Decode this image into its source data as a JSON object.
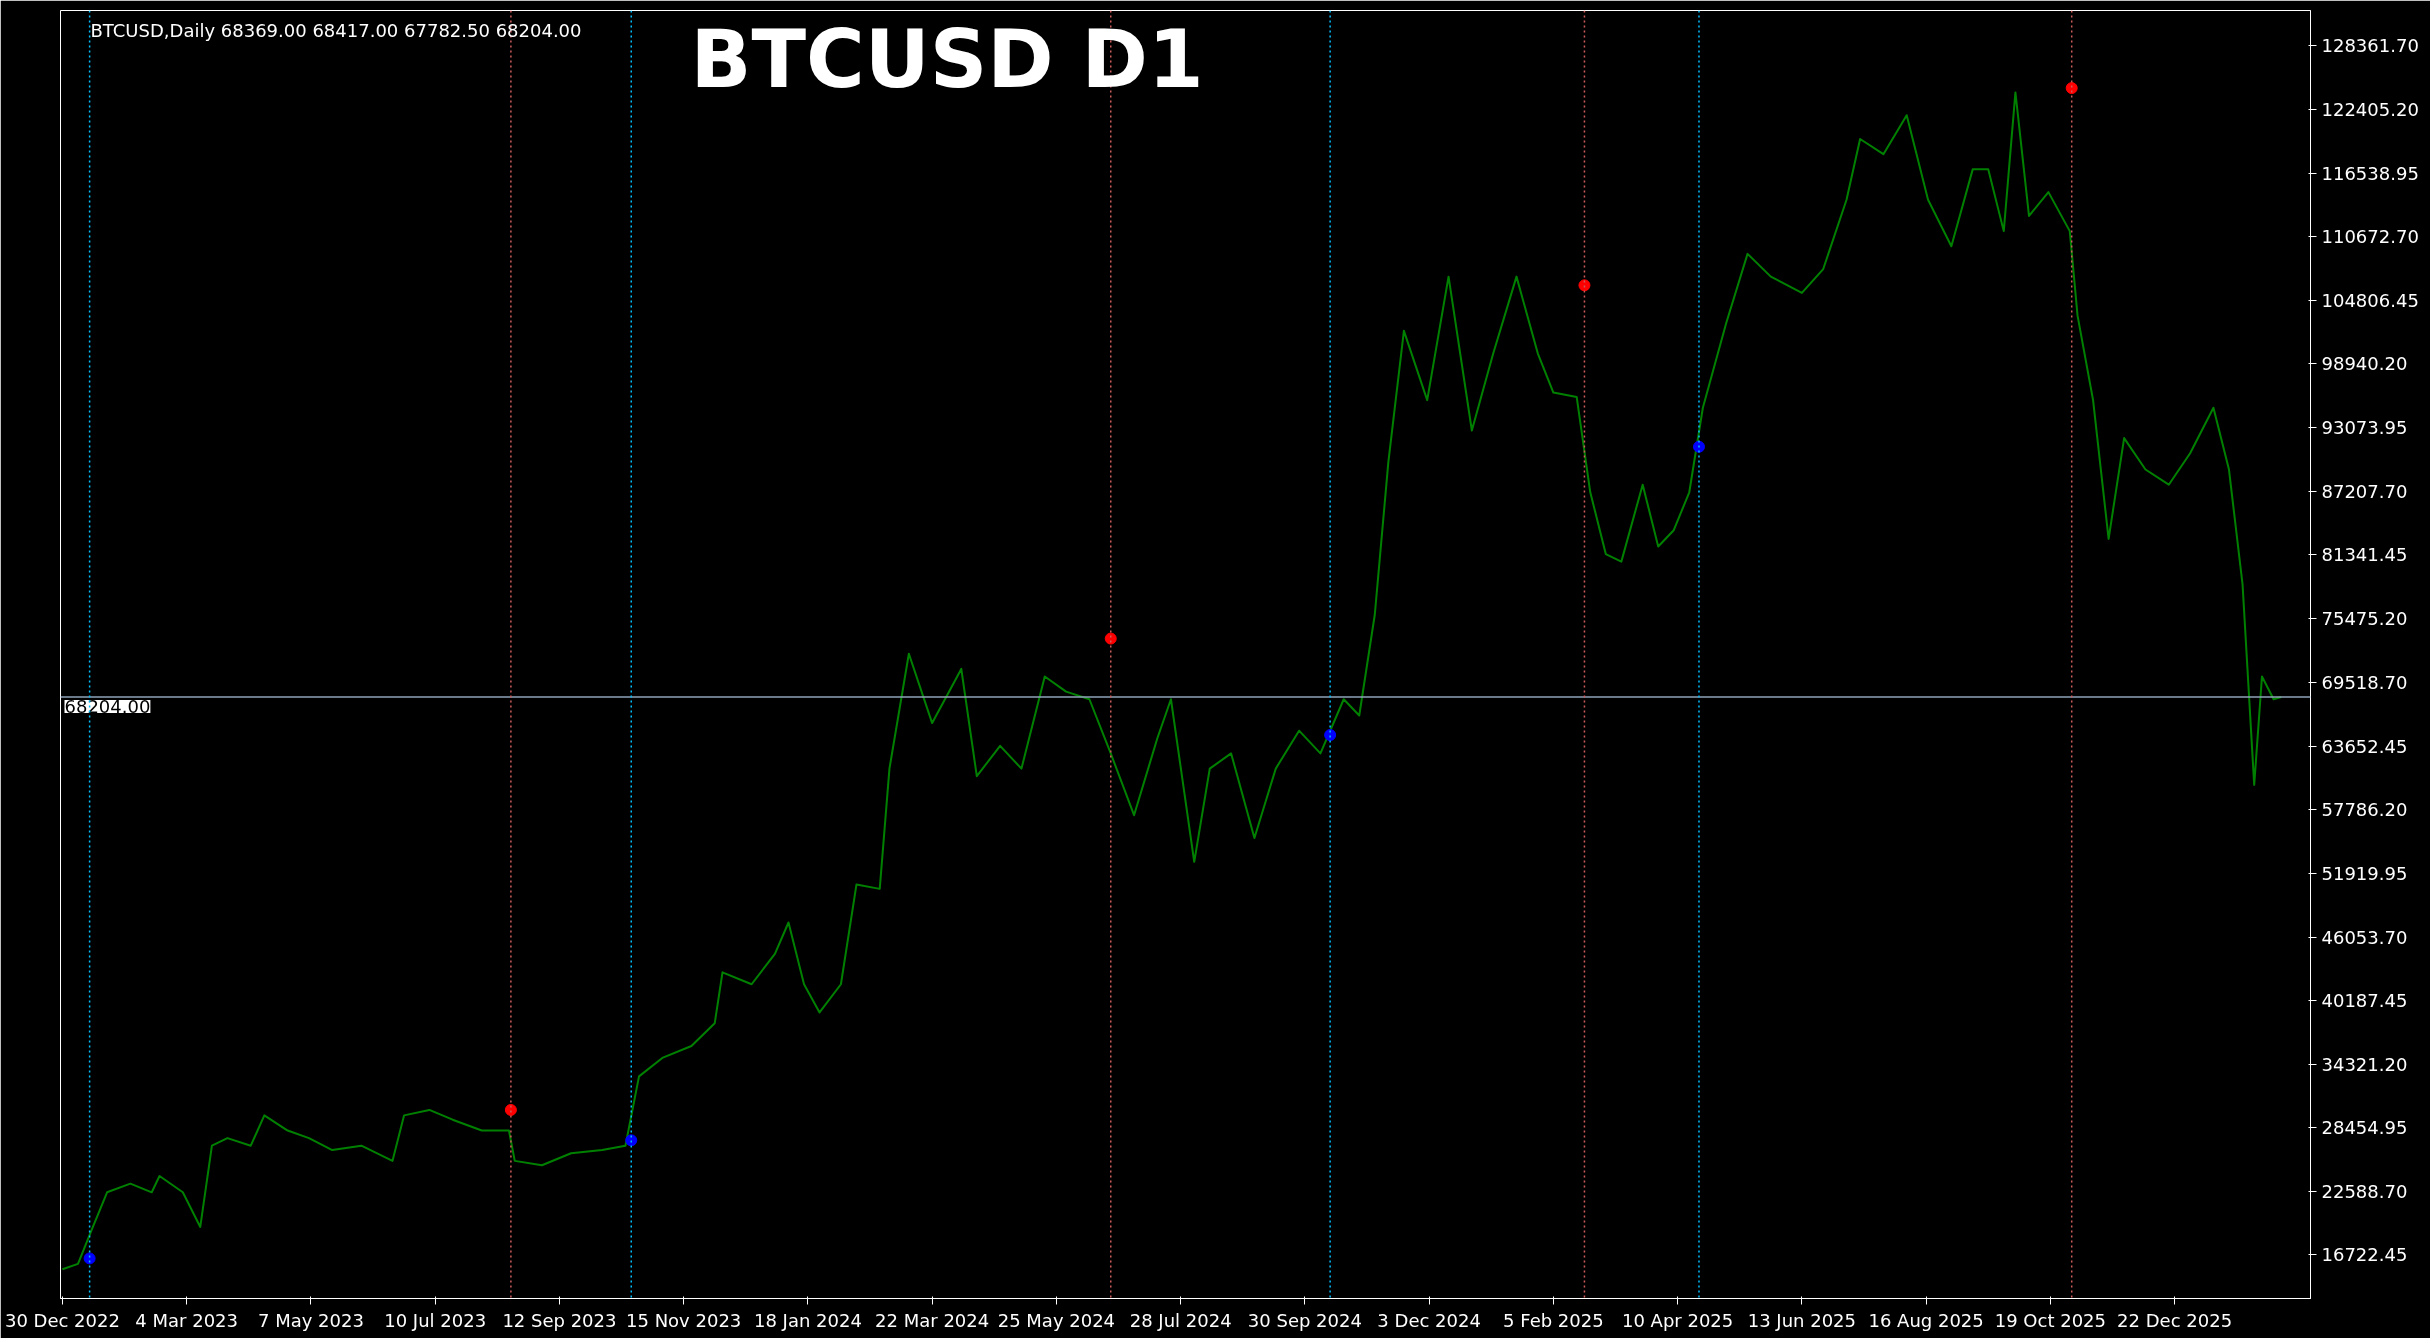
{
  "chart_data": {
    "type": "line",
    "title": "BTCUSD D1",
    "annotations": [
      "BTCUSD,Daily  68369.00 68417.00 67782.50 68204.00"
    ],
    "xlim": [
      "2022-12-29",
      "2026-03-02"
    ],
    "xticks": [
      {
        "value": "2022-12-30",
        "label": "30 Dec 2022"
      },
      {
        "value": "2023-03-04",
        "label": "4 Mar 2023"
      },
      {
        "value": "2023-05-07",
        "label": "7 May 2023"
      },
      {
        "value": "2023-07-10",
        "label": "10 Jul 2023"
      },
      {
        "value": "2023-09-12",
        "label": "12 Sep 2023"
      },
      {
        "value": "2023-11-15",
        "label": "15 Nov 2023"
      },
      {
        "value": "2024-01-18",
        "label": "18 Jan 2024"
      },
      {
        "value": "2024-03-22",
        "label": "22 Mar 2024"
      },
      {
        "value": "2024-05-25",
        "label": "25 May 2024"
      },
      {
        "value": "2024-07-28",
        "label": "28 Jul 2024"
      },
      {
        "value": "2024-09-30",
        "label": "30 Sep 2024"
      },
      {
        "value": "2024-12-03",
        "label": "3 Dec 2024"
      },
      {
        "value": "2025-02-05",
        "label": "5 Feb 2025"
      },
      {
        "value": "2025-04-10",
        "label": "10 Apr 2025"
      },
      {
        "value": "2025-06-13",
        "label": "13 Jun 2025"
      },
      {
        "value": "2025-08-16",
        "label": "16 Aug 2025"
      },
      {
        "value": "2025-10-19",
        "label": "19 Oct 2025"
      },
      {
        "value": "2025-12-22",
        "label": "22 Dec 2025"
      }
    ],
    "ylim": [
      12700,
      131560
    ],
    "yticks": [
      {
        "value": 16722.45,
        "label": "16722.45"
      },
      {
        "value": 22588.7,
        "label": "22588.70"
      },
      {
        "value": 28454.95,
        "label": "28454.95"
      },
      {
        "value": 34321.2,
        "label": "34321.20"
      },
      {
        "value": 40187.45,
        "label": "40187.45"
      },
      {
        "value": 46053.7,
        "label": "46053.70"
      },
      {
        "value": 51919.95,
        "label": "51919.95"
      },
      {
        "value": 57786.2,
        "label": "57786.20"
      },
      {
        "value": 63652.45,
        "label": "63652.45"
      },
      {
        "value": 69518.7,
        "label": "69518.70"
      },
      {
        "value": 75475.2,
        "label": "75475.20"
      },
      {
        "value": 81341.45,
        "label": "81341.45"
      },
      {
        "value": 87207.7,
        "label": "87207.70"
      },
      {
        "value": 93073.95,
        "label": "93073.95"
      },
      {
        "value": 98940.2,
        "label": "98940.20"
      },
      {
        "value": 104806.45,
        "label": "104806.45"
      },
      {
        "value": 110672.7,
        "label": "110672.70"
      },
      {
        "value": 116538.95,
        "label": "116538.95"
      },
      {
        "value": 122405.2,
        "label": "122405.20"
      },
      {
        "value": 128361.7,
        "label": "128361.70"
      }
    ],
    "grid": false,
    "series": [
      {
        "color": "#008000",
        "marker": "none",
        "x": [
          "2022-12-30",
          "2023-01-07",
          "2023-01-14",
          "2023-01-22",
          "2023-02-03",
          "2023-02-14",
          "2023-02-18",
          "2023-03-02",
          "2023-03-11",
          "2023-03-17",
          "2023-03-25",
          "2023-04-06",
          "2023-04-13",
          "2023-04-25",
          "2023-05-06",
          "2023-05-18",
          "2023-06-02",
          "2023-06-18",
          "2023-06-24",
          "2023-07-07",
          "2023-07-19",
          "2023-08-03",
          "2023-08-17",
          "2023-08-20",
          "2023-09-03",
          "2023-09-18",
          "2023-10-04",
          "2023-10-16",
          "2023-10-23",
          "2023-11-04",
          "2023-11-19",
          "2023-12-01",
          "2023-12-05",
          "2023-12-20",
          "2024-01-01",
          "2024-01-08",
          "2024-01-16",
          "2024-01-24",
          "2024-02-04",
          "2024-02-12",
          "2024-02-24",
          "2024-02-29",
          "2024-03-10",
          "2024-03-22",
          "2024-04-06",
          "2024-04-14",
          "2024-04-26",
          "2024-05-07",
          "2024-05-19",
          "2024-05-30",
          "2024-06-11",
          "2024-06-22",
          "2024-07-04",
          "2024-07-16",
          "2024-07-23",
          "2024-08-04",
          "2024-08-12",
          "2024-08-23",
          "2024-09-04",
          "2024-09-15",
          "2024-09-27",
          "2024-10-08",
          "2024-10-20",
          "2024-10-28",
          "2024-11-05",
          "2024-11-12",
          "2024-11-20",
          "2024-12-02",
          "2024-12-13",
          "2024-12-25",
          "2025-01-05",
          "2025-01-17",
          "2025-01-28",
          "2025-02-05",
          "2025-02-17",
          "2025-02-24",
          "2025-03-04",
          "2025-03-12",
          "2025-03-23",
          "2025-03-31",
          "2025-04-08",
          "2025-04-16",
          "2025-04-23",
          "2025-05-05",
          "2025-05-16",
          "2025-05-28",
          "2025-06-13",
          "2025-06-24",
          "2025-07-06",
          "2025-07-13",
          "2025-07-25",
          "2025-08-06",
          "2025-08-17",
          "2025-08-29",
          "2025-09-09",
          "2025-09-17",
          "2025-09-25",
          "2025-10-01",
          "2025-10-08",
          "2025-10-18",
          "2025-10-29",
          "2025-11-02",
          "2025-11-10",
          "2025-11-18",
          "2025-11-26",
          "2025-12-07",
          "2025-12-19",
          "2025-12-30",
          "2026-01-11",
          "2026-01-19",
          "2026-01-26",
          "2026-02-01",
          "2026-02-05",
          "2026-02-11",
          "2026-02-15"
        ],
        "values": [
          15400,
          15900,
          19000,
          22500,
          23300,
          22500,
          24000,
          22500,
          19300,
          26800,
          27500,
          26800,
          29600,
          28200,
          27500,
          26400,
          26800,
          25400,
          29600,
          30100,
          29200,
          28200,
          28200,
          25400,
          25000,
          26100,
          26400,
          26800,
          33200,
          34900,
          36000,
          38100,
          42800,
          41700,
          44500,
          47400,
          41700,
          39100,
          41700,
          50900,
          50500,
          61600,
          72200,
          65800,
          70800,
          60900,
          63700,
          61600,
          70100,
          68700,
          68000,
          63000,
          57300,
          64400,
          68000,
          53000,
          61600,
          63000,
          55200,
          61600,
          65100,
          63000,
          68000,
          66500,
          75800,
          89900,
          102000,
          95600,
          107000,
          92800,
          99900,
          107000,
          99900,
          96300,
          95900,
          87100,
          81400,
          80700,
          87800,
          82100,
          83600,
          87100,
          94900,
          102700,
          109100,
          107000,
          105500,
          107700,
          114100,
          119700,
          118300,
          121900,
          114100,
          109800,
          116900,
          116900,
          111200,
          124000,
          112600,
          114800,
          111200,
          103400,
          95600,
          82800,
          92100,
          89200,
          87800,
          90700,
          94900,
          89200,
          78600,
          60100,
          70100,
          68000,
          68200
        ]
      },
      {
        "type": "scatter",
        "color": "#ff0000",
        "marker": "circle",
        "x": [
          "2023-08-18",
          "2024-06-22",
          "2025-02-21",
          "2025-10-30"
        ],
        "values": [
          30100,
          73600,
          106200,
          124400
        ]
      },
      {
        "type": "scatter",
        "color": "#0000ff",
        "marker": "circle",
        "x": [
          "2023-01-13",
          "2023-10-19",
          "2024-10-13",
          "2025-04-21"
        ],
        "values": [
          16400,
          27300,
          64700,
          91300
        ]
      }
    ],
    "ref_lines": [
      {
        "axis": "y",
        "value": 68204,
        "label": "68204.00",
        "color": "#8fa3b8",
        "line_style": "solid"
      },
      {
        "axis": "x",
        "value": "2023-01-13",
        "color": "#00bfff",
        "line_style": "dotted"
      },
      {
        "axis": "x",
        "value": "2023-08-18",
        "color": "#cd5c5c",
        "line_style": "dotted"
      },
      {
        "axis": "x",
        "value": "2023-10-19",
        "color": "#00bfff",
        "line_style": "dotted"
      },
      {
        "axis": "x",
        "value": "2024-06-22",
        "color": "#cd5c5c",
        "line_style": "dotted"
      },
      {
        "axis": "x",
        "value": "2024-10-13",
        "color": "#00bfff",
        "line_style": "dotted"
      },
      {
        "axis": "x",
        "value": "2025-02-21",
        "color": "#cd5c5c",
        "line_style": "dotted"
      },
      {
        "axis": "x",
        "value": "2025-04-21",
        "color": "#00bfff",
        "line_style": "dotted"
      },
      {
        "axis": "x",
        "value": "2025-10-30",
        "color": "#cd5c5c",
        "line_style": "dotted"
      }
    ]
  }
}
